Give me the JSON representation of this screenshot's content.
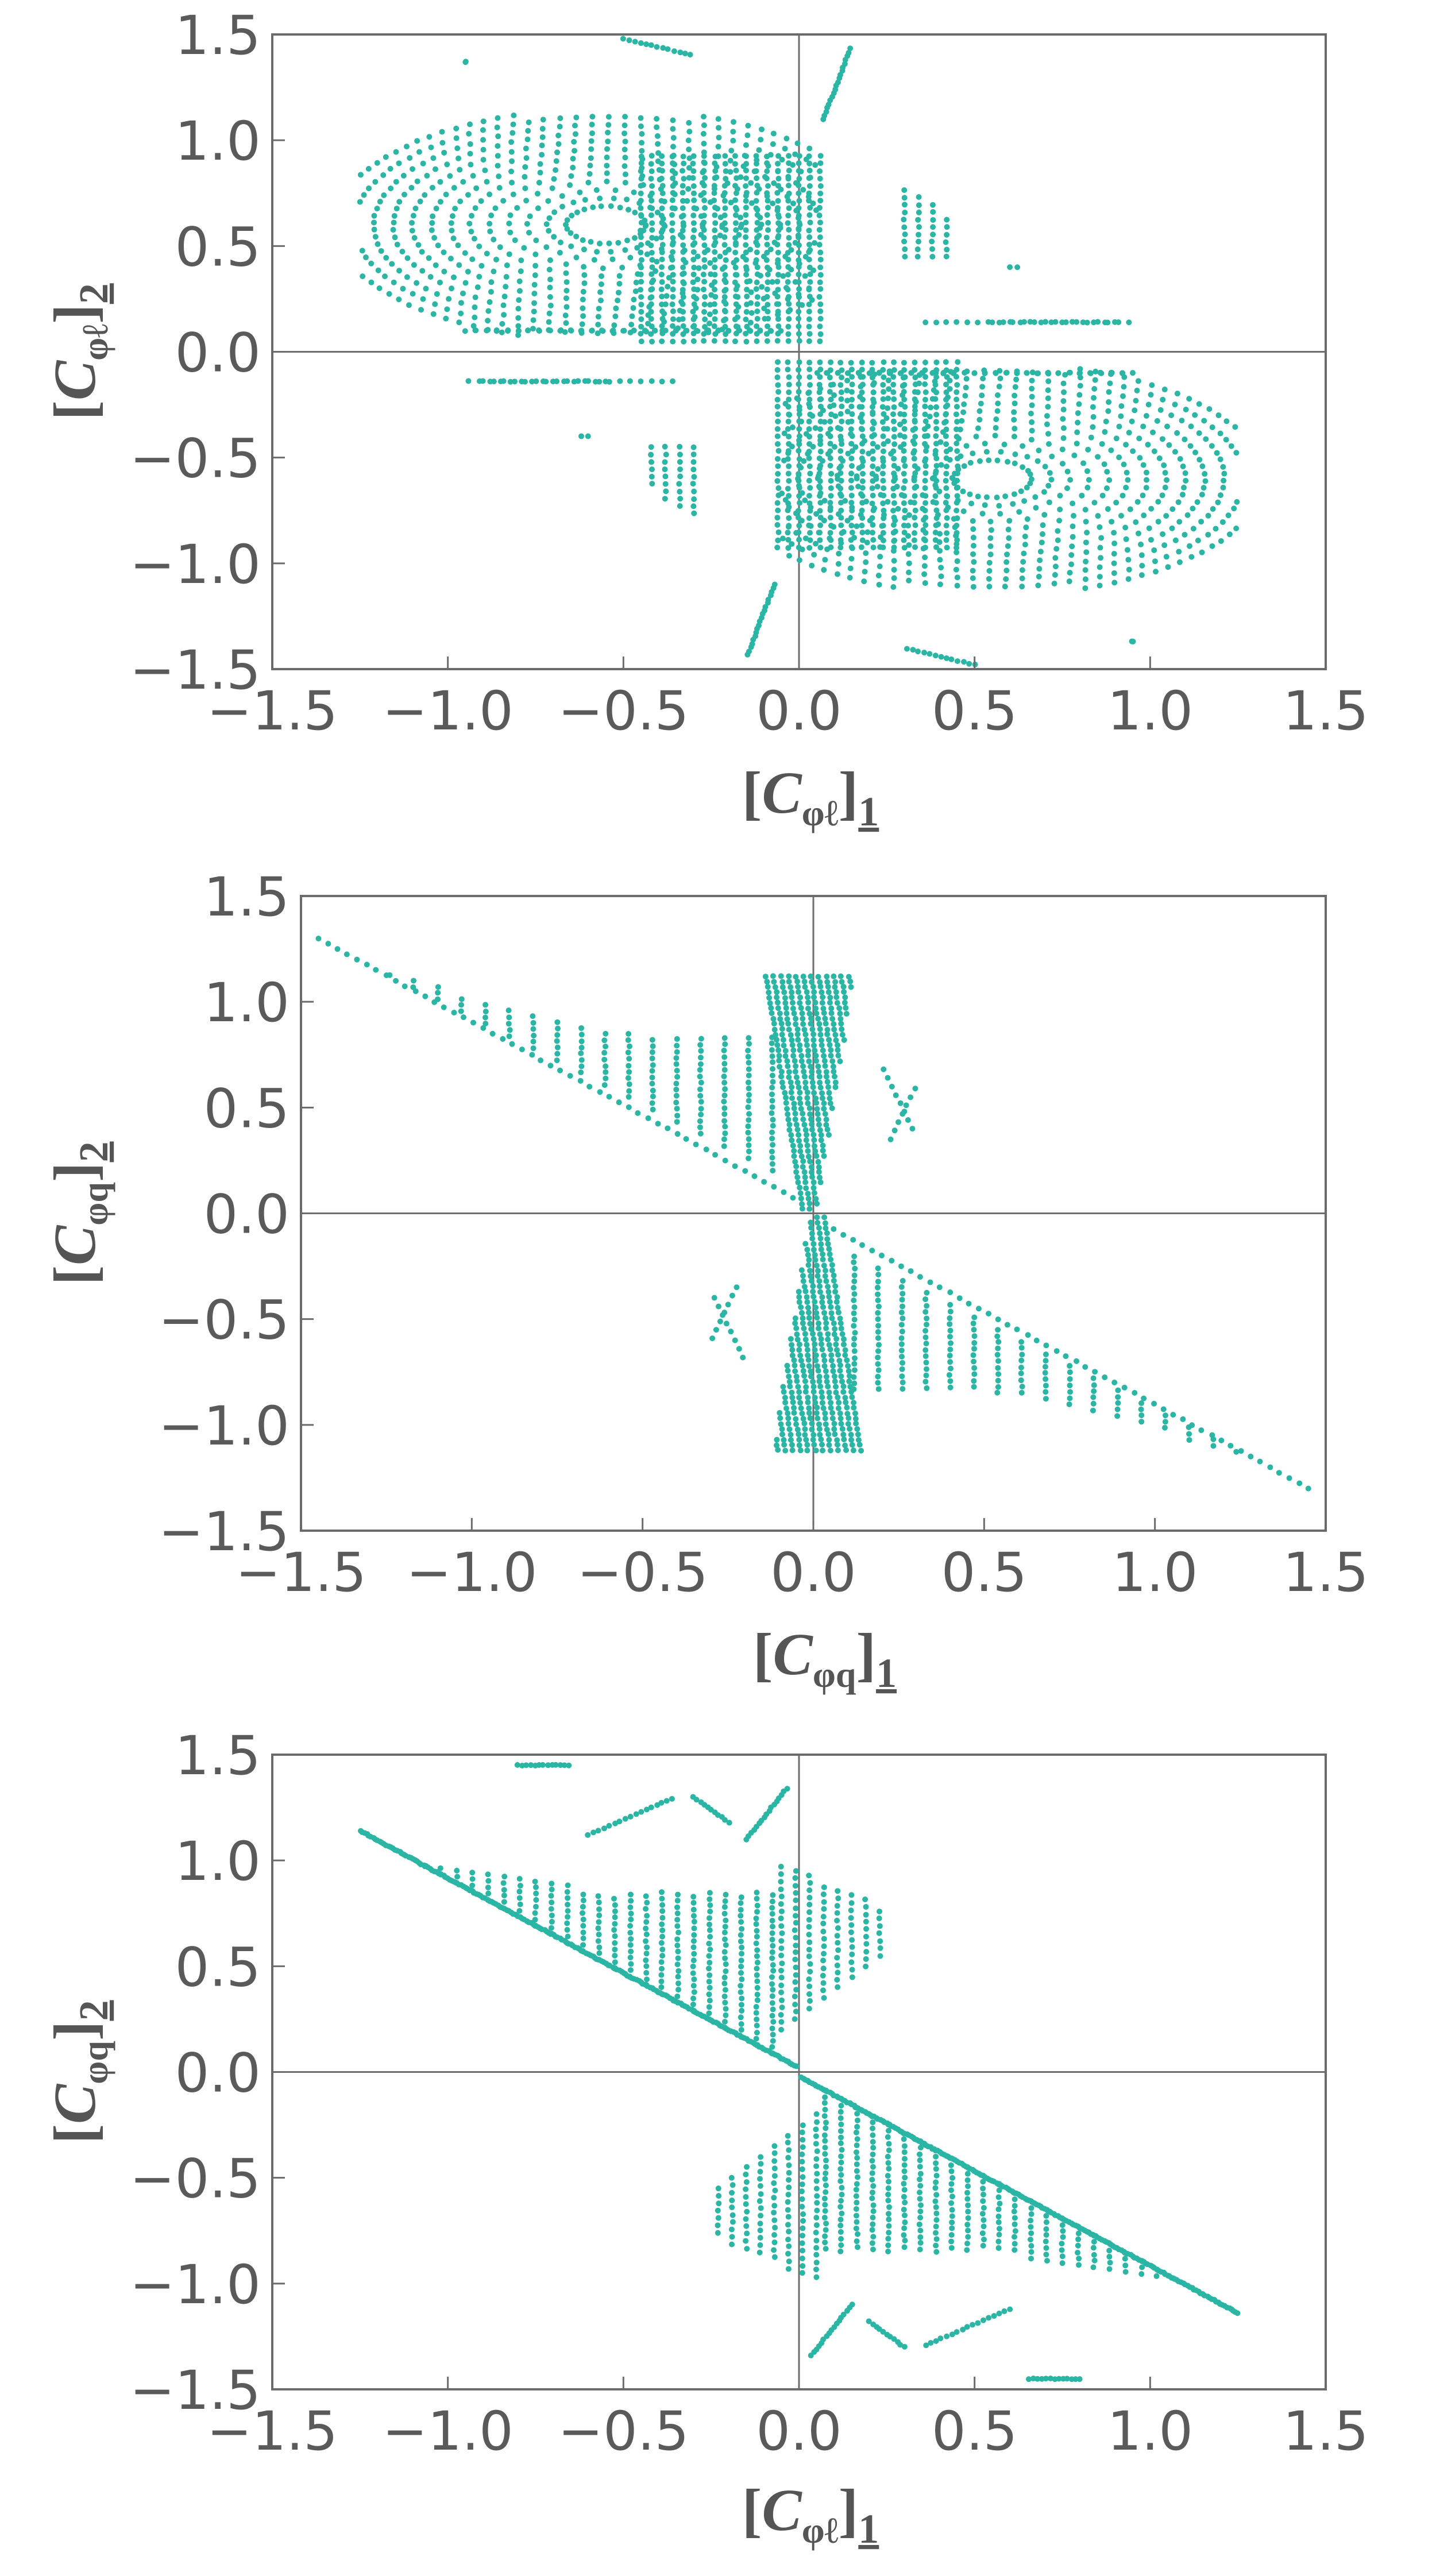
{
  "colors": {
    "points": "#2ab5a5",
    "frame": "#6b6b6b",
    "zero_line": "#6e6e6e",
    "text": "#5a5a5a"
  },
  "chart_data": [
    {
      "type": "scatter",
      "name": "panel-1",
      "xlabel": {
        "symbol": "C",
        "sub": "φℓ",
        "index": "1"
      },
      "ylabel": {
        "symbol": "C",
        "sub": "φℓ",
        "index": "2"
      },
      "xlim": [
        -1.5,
        1.5
      ],
      "ylim": [
        -1.5,
        1.5
      ],
      "x_ticks": [
        "−1.5",
        "−1.0",
        "−0.5",
        "0.0",
        "0.5",
        "1.0",
        "1.5"
      ],
      "y_ticks": [
        "1.5",
        "1.0",
        "0.5",
        "0.0",
        "−0.5",
        "−1.0",
        "−1.5"
      ],
      "tick_values": [
        -1.5,
        -1.0,
        -0.5,
        0.0,
        0.5,
        1.0,
        1.5
      ],
      "shape": "lens",
      "description_arcs": true
    },
    {
      "type": "scatter",
      "name": "panel-2",
      "xlabel": {
        "symbol": "C",
        "sub": "φq",
        "index": "1"
      },
      "ylabel": {
        "symbol": "C",
        "sub": "φq",
        "index": "2"
      },
      "xlim": [
        -1.5,
        1.5
      ],
      "ylim": [
        -1.5,
        1.5
      ],
      "x_ticks": [
        "−1.5",
        "−1.0",
        "−0.5",
        "0.0",
        "0.5",
        "1.0",
        "1.5"
      ],
      "y_ticks": [
        "1.5",
        "1.0",
        "0.5",
        "0.0",
        "−0.5",
        "−1.0",
        "−1.5"
      ],
      "tick_values": [
        -1.5,
        -1.0,
        -0.5,
        0.0,
        0.5,
        1.0,
        1.5
      ],
      "shape": "bowtie",
      "endpoints": [
        [
          -1.45,
          1.3
        ],
        [
          1.45,
          -1.3
        ]
      ]
    },
    {
      "type": "scatter",
      "name": "panel-3",
      "xlabel": {
        "symbol": "C",
        "sub": "φℓ",
        "index": "1"
      },
      "ylabel": {
        "symbol": "C",
        "sub": "φq",
        "index": "2"
      },
      "xlim": [
        -1.5,
        1.5
      ],
      "ylim": [
        -1.5,
        1.5
      ],
      "x_ticks": [
        "−1.5",
        "−1.0",
        "−0.5",
        "0.0",
        "0.5",
        "1.0",
        "1.5"
      ],
      "y_ticks": [
        "1.5",
        "1.0",
        "0.5",
        "0.0",
        "−0.5",
        "−1.0",
        "−1.5"
      ],
      "tick_values": [
        -1.5,
        -1.0,
        -0.5,
        0.0,
        0.5,
        1.0,
        1.5
      ],
      "shape": "wedge",
      "endpoints": [
        [
          -1.25,
          1.14
        ],
        [
          1.25,
          -1.14
        ]
      ]
    }
  ]
}
